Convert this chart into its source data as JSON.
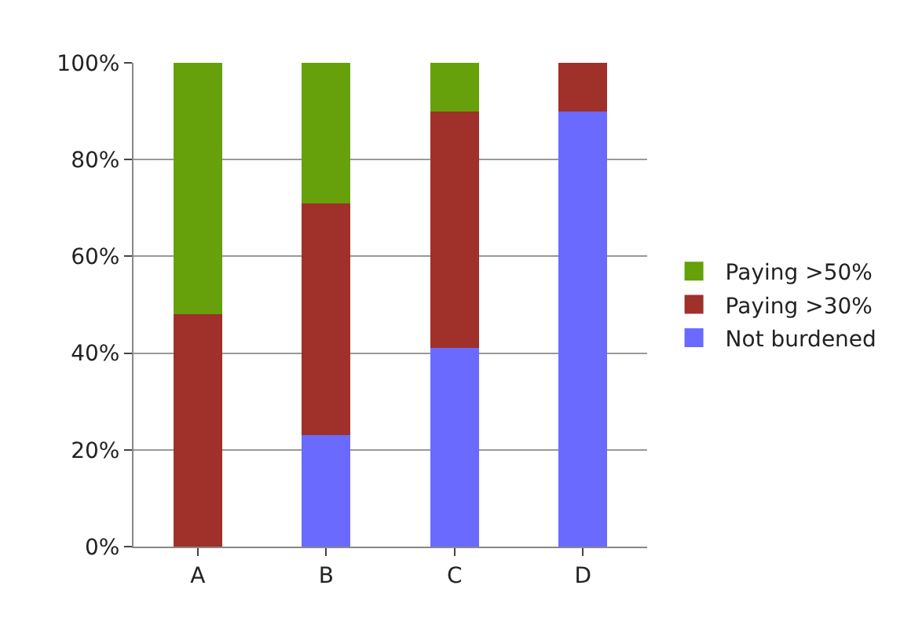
{
  "chart_data": {
    "type": "bar",
    "stacked": true,
    "categories": [
      "A",
      "B",
      "C",
      "D"
    ],
    "series": [
      {
        "name": "Not burdened",
        "color": "#6a6aff",
        "values": [
          0,
          23,
          41,
          90
        ]
      },
      {
        "name": "Paying >30%",
        "color": "#a0302a",
        "values": [
          48,
          48,
          49,
          10
        ]
      },
      {
        "name": "Paying >50%",
        "color": "#66a00a",
        "values": [
          52,
          29,
          10,
          0
        ]
      }
    ],
    "ylim": [
      0,
      100
    ],
    "yticks": [
      {
        "value": 0,
        "label": "0%"
      },
      {
        "value": 20,
        "label": "20%"
      },
      {
        "value": 40,
        "label": "40%"
      },
      {
        "value": 60,
        "label": "60%"
      },
      {
        "value": 80,
        "label": "80%"
      },
      {
        "value": 100,
        "label": "100%"
      }
    ],
    "grid": "y",
    "legend": "right"
  }
}
